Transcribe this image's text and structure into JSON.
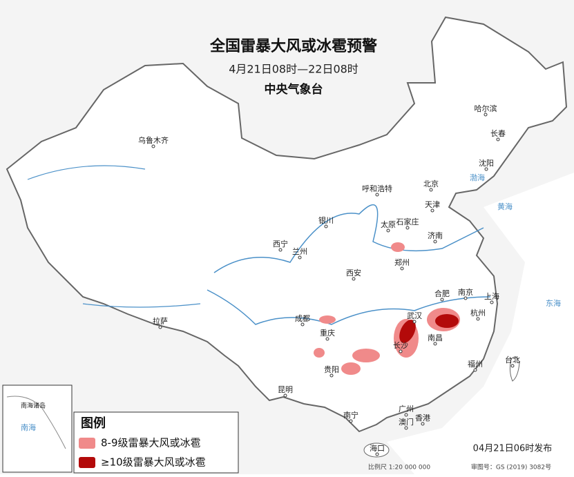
{
  "header": {
    "title": "全国雷暴大风或冰雹预警",
    "period": "4月21日08时—22日08时",
    "issuer": "中央气象台"
  },
  "cities": [
    "乌鲁木齐",
    "呼和浩特",
    "北京",
    "天津",
    "哈尔滨",
    "长春",
    "沈阳",
    "石家庄",
    "太原",
    "济南",
    "银川",
    "西宁",
    "兰州",
    "郑州",
    "西安",
    "合肥",
    "南京",
    "上海",
    "武汉",
    "杭州",
    "成都",
    "重庆",
    "长沙",
    "南昌",
    "拉萨",
    "贵阳",
    "福州",
    "台北",
    "昆明",
    "南宁",
    "广州",
    "澳门",
    "香港",
    "海口"
  ],
  "seas": [
    "渤海",
    "黄海",
    "东海",
    "南海"
  ],
  "inset": {
    "label": "南海诸岛"
  },
  "legend": {
    "title": "图例",
    "items": [
      {
        "label": "8-9级雷暴大风或冰雹",
        "color": "#f08a8a"
      },
      {
        "label": "≥10级雷暴大风或冰雹",
        "color": "#b30a0a"
      }
    ]
  },
  "footer": {
    "release": "04月21日06时发布",
    "scale": "比例尺 1:20 000 000",
    "approval": "审图号：GS (2019) 3082号"
  }
}
